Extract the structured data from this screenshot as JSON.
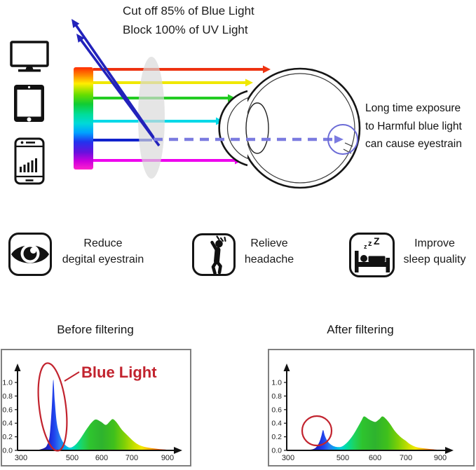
{
  "colors": {
    "accent_red": "#c2232e",
    "dashed_ray": "#7b7be0",
    "reflected_uv": "#2222bb",
    "retina_circle": "#6b6bd6"
  },
  "header": {
    "line1": "Cut off 85% of Blue Light",
    "line2": "Block 100% of UV Light"
  },
  "diagram": {
    "note_lines": {
      "l1": "Long time exposure",
      "l2": "to Harmful blue light",
      "l3": "can cause eyestrain"
    },
    "devices": [
      "monitor",
      "tablet",
      "smartphone"
    ],
    "rays": [
      {
        "name": "red-ray",
        "color": "#ee3311"
      },
      {
        "name": "yellow-ray",
        "color": "#f0e800"
      },
      {
        "name": "green-ray",
        "color": "#22cc22"
      },
      {
        "name": "cyan-ray",
        "color": "#00d9e8"
      },
      {
        "name": "blue-ray",
        "color": "#1122cc"
      },
      {
        "name": "magenta-ray",
        "color": "#ee00ee"
      }
    ]
  },
  "benefits": [
    {
      "icon": "eye-icon",
      "line1": "Reduce",
      "line2": "degital eyestrain"
    },
    {
      "icon": "headache-icon",
      "line1": "Relieve",
      "line2": "headache"
    },
    {
      "icon": "sleep-icon",
      "line1": "Improve",
      "line2": "sleep quality"
    }
  ],
  "chart_data": [
    {
      "type": "area",
      "title": "Before filtering",
      "annotation": "Blue Light",
      "x_tick_labels": [
        "300",
        "500",
        "600",
        "700",
        "900"
      ],
      "y_tick_labels": [
        "0.0",
        "0.2",
        "0.4",
        "0.6",
        "0.8",
        "1.0"
      ],
      "x_ticks": [
        300,
        500,
        600,
        700,
        900
      ],
      "y_ticks": [
        0.0,
        0.2,
        0.4,
        0.6,
        0.8,
        1.0
      ],
      "ylim": [
        0,
        1.1
      ],
      "points": [
        [
          358,
          0
        ],
        [
          388,
          0.03
        ],
        [
          402,
          0.08
        ],
        [
          412,
          0.22
        ],
        [
          420,
          0.62
        ],
        [
          426,
          1.04
        ],
        [
          432,
          0.72
        ],
        [
          440,
          0.4
        ],
        [
          452,
          0.22
        ],
        [
          468,
          0.1
        ],
        [
          486,
          0.045
        ],
        [
          500,
          0.05
        ],
        [
          515,
          0.1
        ],
        [
          532,
          0.2
        ],
        [
          550,
          0.32
        ],
        [
          568,
          0.42
        ],
        [
          581,
          0.455
        ],
        [
          598,
          0.42
        ],
        [
          614,
          0.375
        ],
        [
          628,
          0.43
        ],
        [
          637,
          0.46
        ],
        [
          650,
          0.41
        ],
        [
          668,
          0.3
        ],
        [
          688,
          0.21
        ],
        [
          712,
          0.13
        ],
        [
          740,
          0.08
        ],
        [
          775,
          0.05
        ],
        [
          820,
          0.03
        ],
        [
          870,
          0.015
        ],
        [
          935,
          0.005
        ],
        [
          960,
          0
        ]
      ]
    },
    {
      "type": "area",
      "title": "After filtering",
      "annotation": "",
      "x_tick_labels": [
        "300",
        "500",
        "600",
        "700",
        "900"
      ],
      "y_tick_labels": [
        "0.0",
        "0.2",
        "0.4",
        "0.6",
        "0.8",
        "1.0"
      ],
      "x_ticks": [
        300,
        500,
        600,
        700,
        900
      ],
      "y_ticks": [
        0.0,
        0.2,
        0.4,
        0.6,
        0.8,
        1.0
      ],
      "ylim": [
        0,
        1.1
      ],
      "points": [
        [
          362,
          0
        ],
        [
          392,
          0.02
        ],
        [
          405,
          0.06
        ],
        [
          415,
          0.13
        ],
        [
          422,
          0.22
        ],
        [
          428,
          0.3
        ],
        [
          434,
          0.22
        ],
        [
          442,
          0.15
        ],
        [
          452,
          0.1
        ],
        [
          465,
          0.065
        ],
        [
          480,
          0.05
        ],
        [
          495,
          0.055
        ],
        [
          510,
          0.1
        ],
        [
          528,
          0.2
        ],
        [
          545,
          0.33
        ],
        [
          558,
          0.44
        ],
        [
          566,
          0.5
        ],
        [
          580,
          0.46
        ],
        [
          592,
          0.43
        ],
        [
          602,
          0.42
        ],
        [
          614,
          0.46
        ],
        [
          624,
          0.5
        ],
        [
          636,
          0.46
        ],
        [
          650,
          0.38
        ],
        [
          665,
          0.28
        ],
        [
          682,
          0.2
        ],
        [
          700,
          0.14
        ],
        [
          725,
          0.09
        ],
        [
          760,
          0.05
        ],
        [
          805,
          0.03
        ],
        [
          860,
          0.015
        ],
        [
          920,
          0
        ]
      ]
    }
  ]
}
